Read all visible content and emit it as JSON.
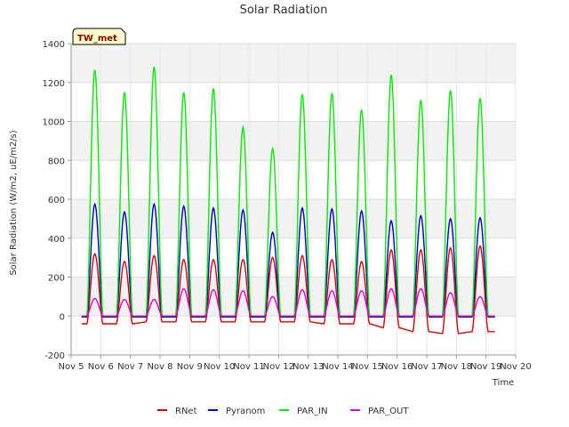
{
  "chart_data": {
    "type": "line",
    "title": "Solar Radiation",
    "xlabel": "Time",
    "ylabel": "Solar Radiation (W/m2, uE/m2/s)",
    "badge": "TW_met",
    "x_ticks": [
      "Nov 5",
      "Nov 6",
      "Nov 7",
      "Nov 8",
      "Nov 9",
      "Nov 10",
      "Nov 11",
      "Nov 12",
      "Nov 13",
      "Nov 14",
      "Nov 15",
      "Nov 16",
      "Nov 17",
      "Nov 18",
      "Nov 19",
      "Nov 20"
    ],
    "y_ticks": [
      -200,
      0,
      200,
      400,
      600,
      800,
      1000,
      1200,
      1400
    ],
    "xlim": [
      5,
      20
    ],
    "ylim": [
      -200,
      1400
    ],
    "grid": true,
    "legend_position": "bottom",
    "day_centers": [
      5.8,
      6.8,
      7.8,
      8.8,
      9.8,
      10.8,
      11.8,
      12.8,
      13.8,
      14.8,
      15.8,
      16.8,
      17.8,
      18.8
    ],
    "half_width": 0.27,
    "series": [
      {
        "name": "RNet",
        "color": "#dd0000",
        "night": [
          -40,
          -40,
          -30,
          -30,
          -30,
          -30,
          -30,
          -30,
          -40,
          -40,
          -60,
          -80,
          -90,
          -80
        ],
        "peaks": [
          320,
          280,
          310,
          290,
          290,
          290,
          300,
          310,
          290,
          280,
          340,
          340,
          350,
          360
        ]
      },
      {
        "name": "Pyranom",
        "color": "#0000cc",
        "night": [
          -5,
          -5,
          -5,
          -5,
          -5,
          -5,
          -5,
          -5,
          -5,
          -5,
          -5,
          -5,
          -5,
          -5
        ],
        "peaks": [
          575,
          535,
          575,
          565,
          555,
          545,
          430,
          555,
          550,
          540,
          490,
          515,
          500,
          505
        ]
      },
      {
        "name": "PAR_IN",
        "color": "#00ee00",
        "night": [
          0,
          0,
          0,
          0,
          0,
          0,
          0,
          0,
          0,
          0,
          0,
          0,
          0,
          0
        ],
        "peaks": [
          1265,
          1150,
          1280,
          1150,
          1170,
          970,
          860,
          1140,
          1145,
          1060,
          1240,
          1110,
          1160,
          1120
        ]
      },
      {
        "name": "PAR_OUT",
        "color": "#dd00dd",
        "night": [
          0,
          0,
          0,
          0,
          0,
          0,
          0,
          0,
          0,
          0,
          0,
          0,
          0,
          0
        ],
        "peaks": [
          90,
          85,
          85,
          140,
          135,
          130,
          100,
          135,
          130,
          130,
          140,
          140,
          120,
          100
        ]
      }
    ]
  }
}
